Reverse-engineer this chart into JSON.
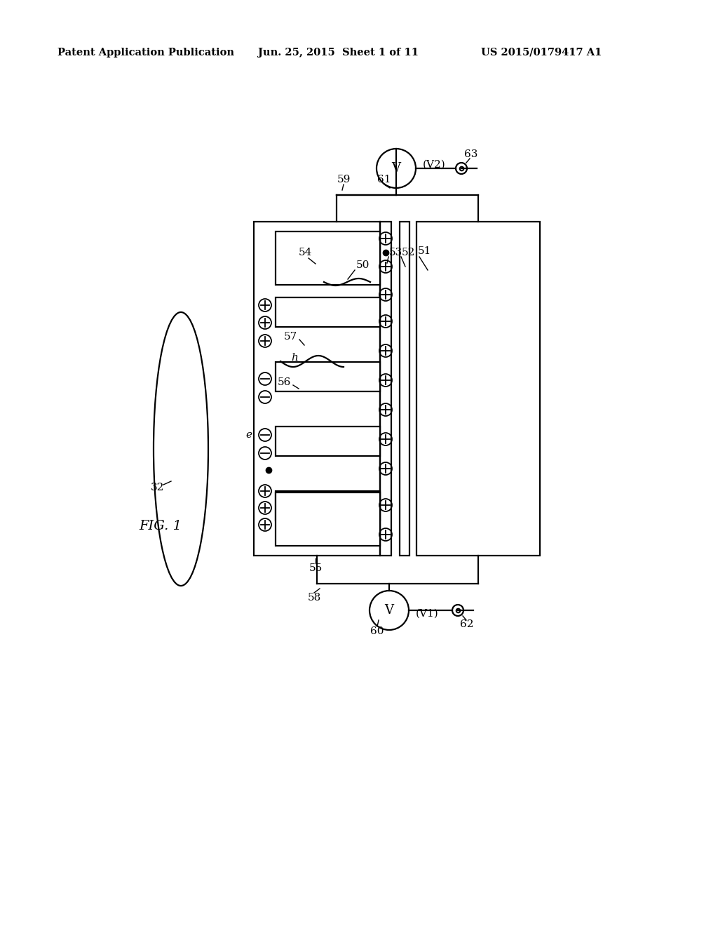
{
  "bg": "#ffffff",
  "lc": "#000000",
  "lw": 1.6,
  "header1": "Patent Application Publication",
  "header2": "Jun. 25, 2015  Sheet 1 of 11",
  "header3": "US 2015/0179417 A1",
  "fig_label": "FIG. 1"
}
